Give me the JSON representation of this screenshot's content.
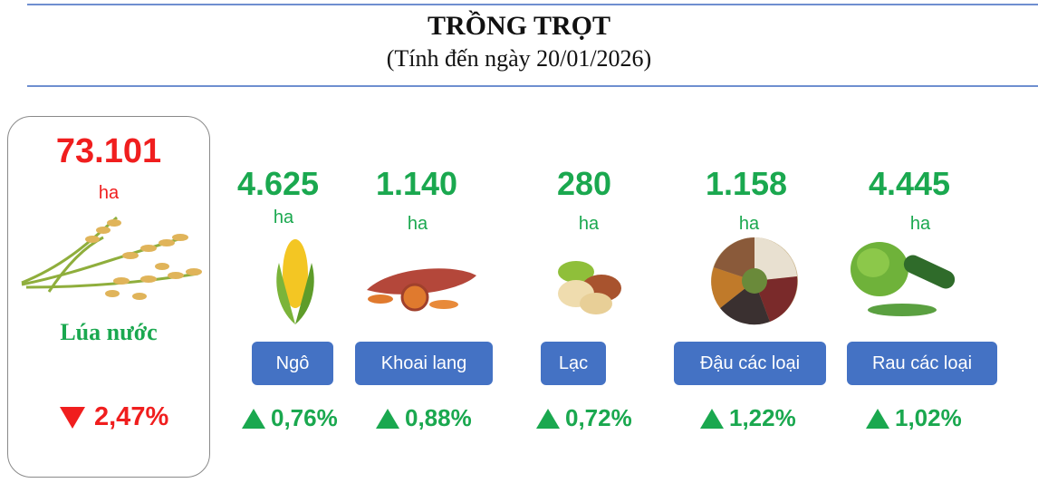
{
  "header": {
    "title": "TRỒNG TRỌT",
    "subtitle": "(Tính đến ngày 20/01/2026)"
  },
  "main": {
    "value": "73.101",
    "unit": "ha",
    "name": "Lúa nước",
    "change": "2,47%"
  },
  "items": [
    {
      "value": "4.625",
      "unit": "ha",
      "name": "Ngô",
      "change": "0,76%"
    },
    {
      "value": "1.140",
      "unit": "ha",
      "name": "Khoai lang",
      "change": "0,88%"
    },
    {
      "value": "280",
      "unit": "ha",
      "name": "Lạc",
      "change": "0,72%"
    },
    {
      "value": "1.158",
      "unit": "ha",
      "name": "Đậu các loại",
      "change": "1,22%"
    },
    {
      "value": "4.445",
      "unit": "ha",
      "name": "Rau các loại",
      "change": "1,02%"
    }
  ]
}
